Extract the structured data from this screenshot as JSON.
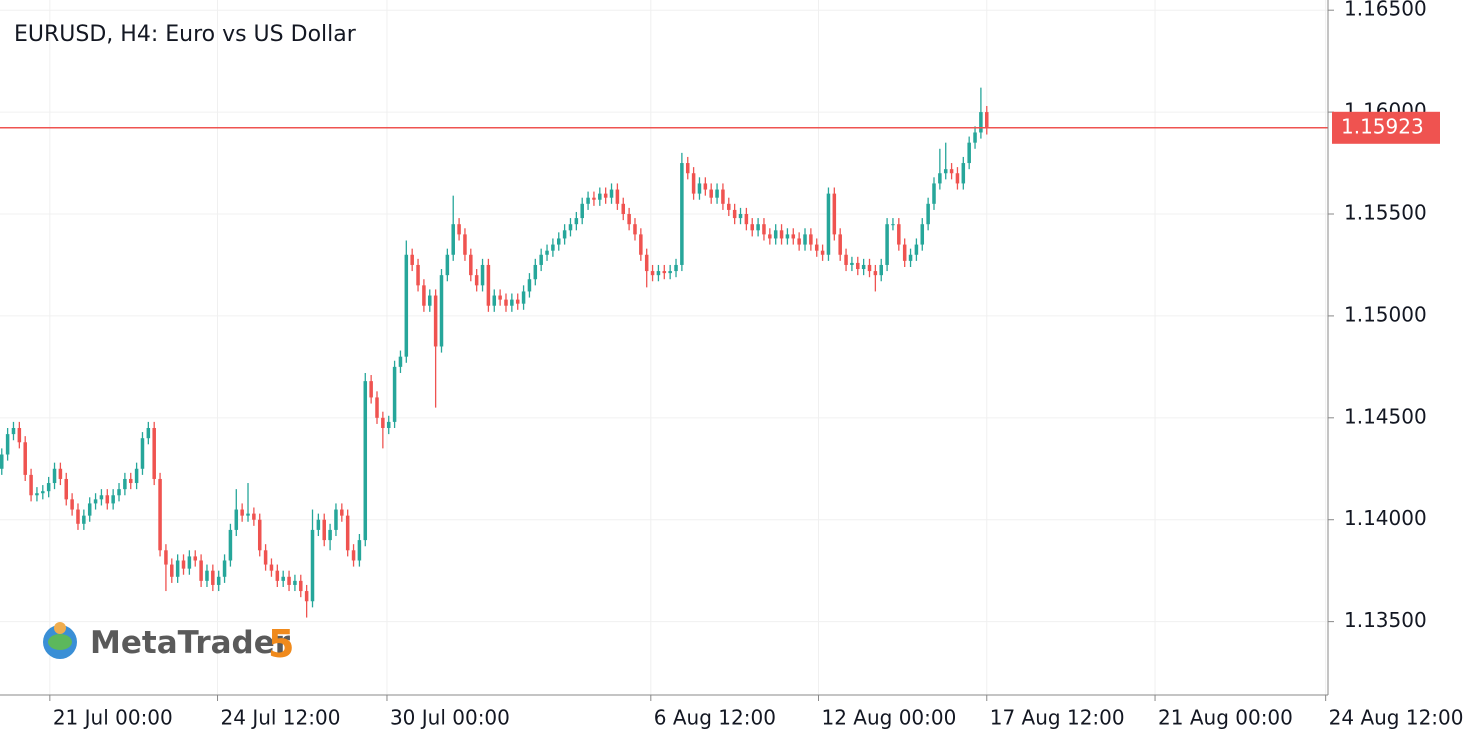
{
  "chart_data": {
    "type": "candlestick",
    "title": "EURUSD, H4: Euro vs US Dollar",
    "up_color": "#26a69a",
    "down_color": "#ef5350",
    "grid": true,
    "xlim": [
      -0.3,
      226.2
    ],
    "xticks": [
      {
        "value": 8.2,
        "label": "21 Jul 00:00"
      },
      {
        "value": 36.8,
        "label": "24 Jul 12:00"
      },
      {
        "value": 65.7,
        "label": "30 Jul 00:00"
      },
      {
        "value": 110.7,
        "label": "6 Aug 12:00"
      },
      {
        "value": 139.3,
        "label": "12 Aug 00:00"
      },
      {
        "value": 168,
        "label": "17 Aug 12:00"
      },
      {
        "value": 196.7,
        "label": "21 Aug 00:00"
      },
      {
        "value": 225.8,
        "label": "24 Aug 12:00"
      }
    ],
    "ylim": [
      1.1314,
      1.1655
    ],
    "yticks": [
      {
        "value": 1.135,
        "label": "1.13500"
      },
      {
        "value": 1.14,
        "label": "1.14000"
      },
      {
        "value": 1.145,
        "label": "1.14500"
      },
      {
        "value": 1.15,
        "label": "1.15000"
      },
      {
        "value": 1.155,
        "label": "1.15500"
      },
      {
        "value": 1.16,
        "label": "1.16000"
      },
      {
        "value": 1.165,
        "label": "1.16500"
      }
    ],
    "price_line": {
      "value": 1.15923,
      "color": "#ef5350"
    },
    "open": [
      1.1425,
      1.1432,
      1.1442,
      1.1445,
      1.1438,
      1.1422,
      1.1412,
      1.1413,
      1.1414,
      1.1418,
      1.1425,
      1.142,
      1.141,
      1.1405,
      1.1398,
      1.1402,
      1.1408,
      1.141,
      1.1412,
      1.1408,
      1.1412,
      1.1415,
      1.142,
      1.1418,
      1.1425,
      1.144,
      1.1445,
      1.142,
      1.1385,
      1.1378,
      1.1372,
      1.138,
      1.1376,
      1.1382,
      1.138,
      1.137,
      1.1375,
      1.1368,
      1.1372,
      1.138,
      1.1395,
      1.1405,
      1.1402,
      1.1403,
      1.14,
      1.1385,
      1.1378,
      1.1375,
      1.137,
      1.1372,
      1.1368,
      1.137,
      1.1365,
      1.136,
      1.1395,
      1.14,
      1.139,
      1.1395,
      1.1405,
      1.1402,
      1.1385,
      1.138,
      1.139,
      1.1468,
      1.146,
      1.145,
      1.1445,
      1.1448,
      1.1475,
      1.148,
      1.153,
      1.1525,
      1.1515,
      1.1505,
      1.151,
      1.1485,
      1.152,
      1.153,
      1.1545,
      1.154,
      1.153,
      1.152,
      1.1515,
      1.1525,
      1.1505,
      1.151,
      1.1508,
      1.1505,
      1.1508,
      1.1506,
      1.1512,
      1.1518,
      1.1525,
      1.153,
      1.1532,
      1.1535,
      1.1538,
      1.1542,
      1.1545,
      1.1548,
      1.1555,
      1.1558,
      1.1557,
      1.156,
      1.1558,
      1.1562,
      1.1555,
      1.155,
      1.1545,
      1.154,
      1.153,
      1.1522,
      1.152,
      1.1522,
      1.1521,
      1.1522,
      1.1525,
      1.1575,
      1.157,
      1.156,
      1.1565,
      1.1562,
      1.1558,
      1.1562,
      1.1555,
      1.1552,
      1.1548,
      1.155,
      1.1545,
      1.1542,
      1.1545,
      1.154,
      1.1538,
      1.1542,
      1.1538,
      1.154,
      1.1538,
      1.1535,
      1.154,
      1.1535,
      1.1532,
      1.153,
      1.156,
      1.154,
      1.153,
      1.1525,
      1.1526,
      1.1523,
      1.1525,
      1.1522,
      1.152,
      1.1525,
      1.1545,
      1.1545,
      1.1535,
      1.1527,
      1.153,
      1.1535,
      1.1545,
      1.1555,
      1.1565,
      1.157,
      1.1572,
      1.157,
      1.1565,
      1.1575,
      1.1585,
      1.159,
      1.16
    ],
    "high": [
      1.1435,
      1.1445,
      1.1448,
      1.1448,
      1.1441,
      1.1425,
      1.1416,
      1.1417,
      1.1421,
      1.1428,
      1.1428,
      1.1423,
      1.1413,
      1.1408,
      1.1405,
      1.1411,
      1.1413,
      1.1415,
      1.1415,
      1.1415,
      1.1418,
      1.1423,
      1.1423,
      1.1428,
      1.1443,
      1.1448,
      1.1448,
      1.1423,
      1.1388,
      1.1381,
      1.1383,
      1.1383,
      1.1385,
      1.1385,
      1.1383,
      1.1378,
      1.1378,
      1.1375,
      1.1383,
      1.1398,
      1.1415,
      1.1408,
      1.1418,
      1.1406,
      1.1403,
      1.1388,
      1.1381,
      1.1378,
      1.1375,
      1.1375,
      1.1373,
      1.1373,
      1.1368,
      1.1405,
      1.1403,
      1.1403,
      1.1398,
      1.1408,
      1.1408,
      1.1405,
      1.1388,
      1.1393,
      1.1472,
      1.1471,
      1.1463,
      1.1453,
      1.1451,
      1.1478,
      1.1483,
      1.1537,
      1.1533,
      1.1528,
      1.1518,
      1.1513,
      1.1513,
      1.1523,
      1.1533,
      1.1559,
      1.1548,
      1.1543,
      1.1533,
      1.1523,
      1.1528,
      1.1528,
      1.1513,
      1.1513,
      1.1511,
      1.1511,
      1.1511,
      1.1515,
      1.1521,
      1.1528,
      1.1533,
      1.1535,
      1.1538,
      1.1541,
      1.1545,
      1.1548,
      1.1551,
      1.1558,
      1.1561,
      1.1561,
      1.1563,
      1.1563,
      1.1565,
      1.1565,
      1.1558,
      1.1553,
      1.1548,
      1.1543,
      1.1533,
      1.1525,
      1.1525,
      1.1525,
      1.1525,
      1.1528,
      1.158,
      1.1578,
      1.1573,
      1.1568,
      1.1568,
      1.1565,
      1.1565,
      1.1565,
      1.1558,
      1.1555,
      1.1553,
      1.1553,
      1.1548,
      1.1548,
      1.1548,
      1.1543,
      1.1545,
      1.1545,
      1.1543,
      1.1543,
      1.1541,
      1.1543,
      1.1543,
      1.1538,
      1.1535,
      1.1563,
      1.1563,
      1.1543,
      1.1533,
      1.1529,
      1.1529,
      1.1528,
      1.1528,
      1.1525,
      1.1528,
      1.1548,
      1.1548,
      1.1548,
      1.1538,
      1.1533,
      1.1538,
      1.1548,
      1.1558,
      1.1568,
      1.1582,
      1.1585,
      1.1575,
      1.1573,
      1.1578,
      1.1588,
      1.1593,
      1.1612,
      1.1603
    ],
    "low": [
      1.1422,
      1.1429,
      1.1439,
      1.1435,
      1.1419,
      1.1409,
      1.1409,
      1.141,
      1.1411,
      1.1415,
      1.1417,
      1.1407,
      1.1402,
      1.1395,
      1.1395,
      1.1399,
      1.1405,
      1.1407,
      1.1405,
      1.1405,
      1.1409,
      1.1412,
      1.1415,
      1.1415,
      1.1422,
      1.1437,
      1.1417,
      1.1382,
      1.1365,
      1.1369,
      1.1369,
      1.1373,
      1.1373,
      1.1377,
      1.1367,
      1.1367,
      1.1365,
      1.1365,
      1.1369,
      1.1377,
      1.1392,
      1.1399,
      1.1399,
      1.1397,
      1.1382,
      1.1375,
      1.1372,
      1.1367,
      1.1367,
      1.1365,
      1.1365,
      1.1362,
      1.1352,
      1.1357,
      1.1392,
      1.1387,
      1.1385,
      1.1392,
      1.1399,
      1.1382,
      1.1377,
      1.1377,
      1.1387,
      1.1457,
      1.1447,
      1.1435,
      1.1442,
      1.1445,
      1.1472,
      1.1477,
      1.1522,
      1.1512,
      1.1502,
      1.1502,
      1.1455,
      1.1482,
      1.1517,
      1.1527,
      1.1537,
      1.1527,
      1.1517,
      1.1512,
      1.1512,
      1.1502,
      1.1502,
      1.1505,
      1.1502,
      1.1502,
      1.1503,
      1.1503,
      1.1509,
      1.1515,
      1.1522,
      1.1527,
      1.1529,
      1.1532,
      1.1535,
      1.1539,
      1.1542,
      1.1545,
      1.1552,
      1.1554,
      1.1554,
      1.1555,
      1.1555,
      1.1552,
      1.1547,
      1.1542,
      1.1537,
      1.1527,
      1.1514,
      1.1517,
      1.1517,
      1.1518,
      1.1518,
      1.1519,
      1.1522,
      1.1567,
      1.1557,
      1.1557,
      1.1559,
      1.1555,
      1.1555,
      1.1552,
      1.1549,
      1.1545,
      1.1545,
      1.1542,
      1.1539,
      1.1539,
      1.1537,
      1.1535,
      1.1535,
      1.1535,
      1.1535,
      1.1535,
      1.1532,
      1.1532,
      1.1532,
      1.1529,
      1.1527,
      1.1527,
      1.1537,
      1.1527,
      1.1522,
      1.1522,
      1.152,
      1.152,
      1.1519,
      1.1512,
      1.1517,
      1.1522,
      1.1542,
      1.1532,
      1.1524,
      1.1524,
      1.1527,
      1.1532,
      1.1542,
      1.1552,
      1.1562,
      1.1567,
      1.1567,
      1.1562,
      1.1562,
      1.1572,
      1.1582,
      1.1587,
      1.1589
    ],
    "close": [
      1.1432,
      1.1442,
      1.1445,
      1.1438,
      1.1422,
      1.1412,
      1.1413,
      1.1414,
      1.1418,
      1.1425,
      1.142,
      1.141,
      1.1405,
      1.1398,
      1.1402,
      1.1408,
      1.141,
      1.1412,
      1.1408,
      1.1412,
      1.1415,
      1.142,
      1.1418,
      1.1425,
      1.144,
      1.1445,
      1.142,
      1.1385,
      1.1378,
      1.1372,
      1.138,
      1.1376,
      1.1382,
      1.138,
      1.137,
      1.1375,
      1.1368,
      1.1372,
      1.138,
      1.1395,
      1.1405,
      1.1402,
      1.1403,
      1.14,
      1.1385,
      1.1378,
      1.1375,
      1.137,
      1.1372,
      1.1368,
      1.137,
      1.1365,
      1.136,
      1.1395,
      1.14,
      1.139,
      1.1395,
      1.1405,
      1.1402,
      1.1385,
      1.138,
      1.139,
      1.1468,
      1.146,
      1.145,
      1.1445,
      1.1448,
      1.1475,
      1.148,
      1.153,
      1.1525,
      1.1515,
      1.1505,
      1.151,
      1.1485,
      1.152,
      1.153,
      1.1545,
      1.154,
      1.153,
      1.152,
      1.1515,
      1.1525,
      1.1505,
      1.151,
      1.1508,
      1.1505,
      1.1508,
      1.1506,
      1.1512,
      1.1518,
      1.1525,
      1.153,
      1.1532,
      1.1535,
      1.1538,
      1.1542,
      1.1545,
      1.1548,
      1.1555,
      1.1558,
      1.1557,
      1.156,
      1.1558,
      1.1562,
      1.1555,
      1.155,
      1.1545,
      1.154,
      1.153,
      1.1522,
      1.152,
      1.1522,
      1.1521,
      1.1522,
      1.1525,
      1.1575,
      1.157,
      1.156,
      1.1565,
      1.1562,
      1.1558,
      1.1562,
      1.1555,
      1.1552,
      1.1548,
      1.155,
      1.1545,
      1.1542,
      1.1545,
      1.154,
      1.1538,
      1.1542,
      1.1538,
      1.154,
      1.1538,
      1.1535,
      1.154,
      1.1535,
      1.1532,
      1.153,
      1.156,
      1.154,
      1.153,
      1.1525,
      1.1526,
      1.1523,
      1.1525,
      1.1522,
      1.152,
      1.1525,
      1.1545,
      1.1545,
      1.1535,
      1.1527,
      1.153,
      1.1535,
      1.1545,
      1.1555,
      1.1565,
      1.157,
      1.1572,
      1.157,
      1.1565,
      1.1575,
      1.1585,
      1.159,
      1.16,
      1.1592
    ]
  },
  "logo": {
    "name": "MetaTrader",
    "version": "5"
  }
}
